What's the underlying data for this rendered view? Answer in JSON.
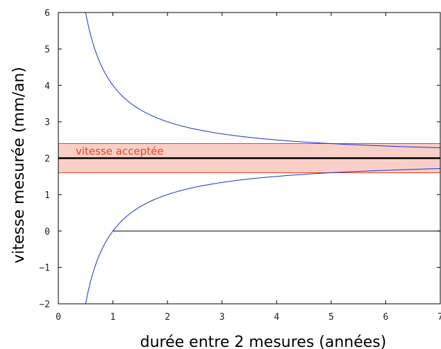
{
  "chart_data": {
    "type": "line",
    "xlabel": "durée entre 2 mesures (années)",
    "ylabel": "vitesse mesurée (mm/an)",
    "xlim": [
      0,
      7
    ],
    "ylim": [
      -2,
      6
    ],
    "xticks": [
      "0",
      "1",
      "2",
      "3",
      "4",
      "5",
      "6",
      "7"
    ],
    "yticks": [
      "−2",
      "−1",
      "0",
      "1",
      "2",
      "3",
      "4",
      "5",
      "6"
    ],
    "grid": false,
    "accepted_velocity": 2,
    "band": {
      "low": 1.6,
      "high": 2.4,
      "label": "vitesse acceptée",
      "color": "#e8401c",
      "fill": "#f9d0c8"
    },
    "series": [
      {
        "color": "#1a2fd6",
        "x": [
          0.5,
          0.6,
          0.75,
          1,
          1.5,
          2,
          2.5,
          3,
          4,
          5,
          6,
          7
        ],
        "values": [
          6.0,
          5.33,
          4.67,
          4.0,
          3.33,
          3.0,
          2.8,
          2.67,
          2.5,
          2.4,
          2.33,
          2.29
        ]
      },
      {
        "color": "#1a2fd6",
        "x": [
          0.5,
          0.6,
          0.75,
          1,
          1.5,
          2,
          2.5,
          3,
          4,
          5,
          6,
          7
        ],
        "values": [
          -2.0,
          -1.33,
          -0.67,
          0.0,
          0.67,
          1.0,
          1.2,
          1.33,
          1.5,
          1.6,
          1.67,
          1.71
        ]
      }
    ],
    "zero_line": {
      "from_x": 1,
      "to_x": 7,
      "y": 0,
      "color": "#000000"
    }
  }
}
